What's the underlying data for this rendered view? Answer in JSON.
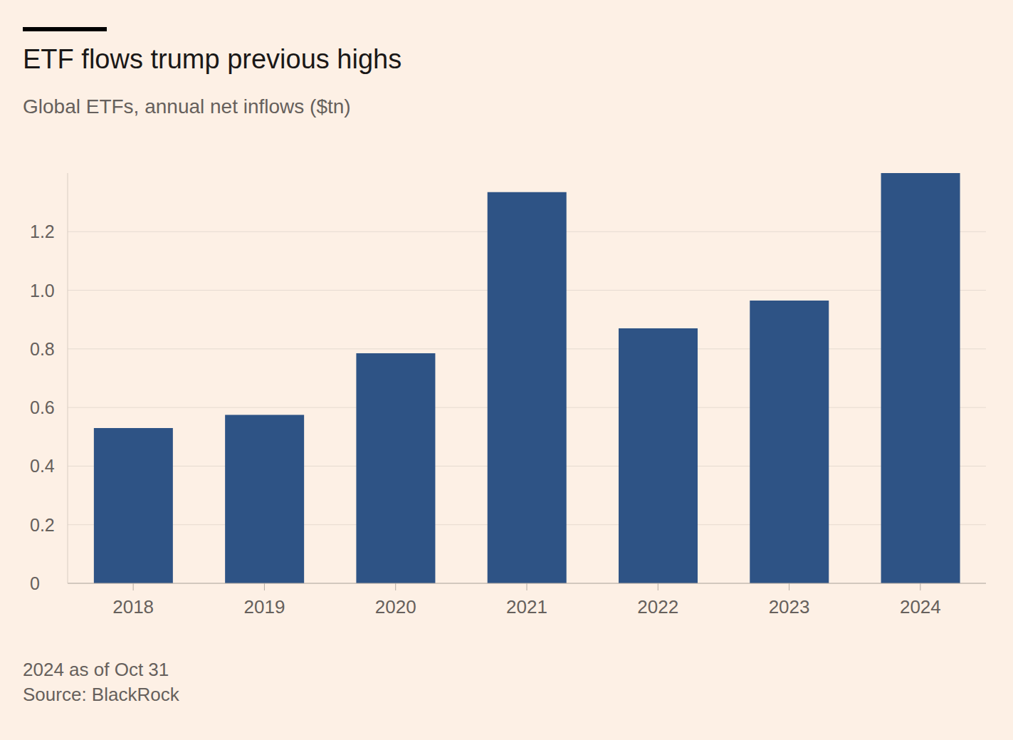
{
  "chart_data": {
    "type": "bar",
    "title": "ETF flows trump previous highs",
    "subtitle": "Global ETFs, annual net inflows ($tn)",
    "annotations": [
      "2024 as of Oct 31",
      "Source: BlackRock"
    ],
    "categories": [
      "2018",
      "2019",
      "2020",
      "2021",
      "2022",
      "2023",
      "2024"
    ],
    "values": [
      0.53,
      0.575,
      0.785,
      1.335,
      0.87,
      0.965,
      1.4
    ],
    "color": "#2e5385",
    "ylim": [
      0,
      1.4
    ],
    "yticks": [
      0,
      0.2,
      0.4,
      0.6,
      0.8,
      {
        "value": 1,
        "label": "1.0"
      },
      1.2
    ],
    "grid": true
  }
}
